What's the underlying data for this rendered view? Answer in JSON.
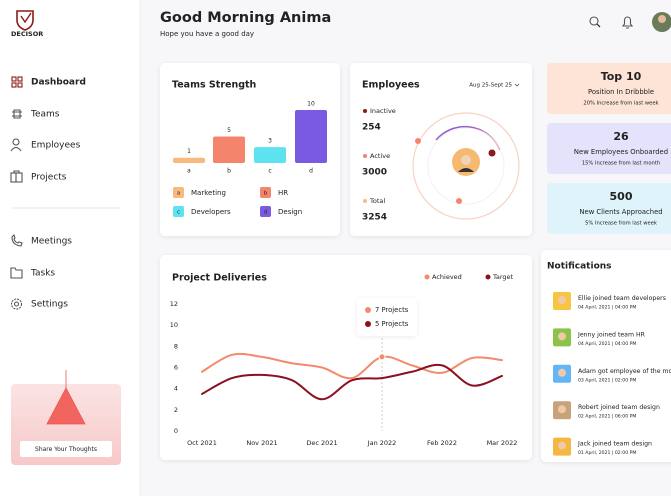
{
  "sidebar": {
    "brand": "DECISOR",
    "nav": [
      "Dashboard",
      "Teams",
      "Employees",
      "Projects",
      "Meetings",
      "Tasks",
      "Settings"
    ],
    "share": "Share Your Thoughts"
  },
  "header": {
    "title": "Good Morning Anima",
    "subtitle": "Hope you have a good day"
  },
  "teams_strength": {
    "type": "bar",
    "title": "Teams Strength",
    "categories": [
      "a",
      "b",
      "c",
      "d"
    ],
    "values": [
      1,
      5,
      3,
      10
    ],
    "colors": [
      "#f9b97c",
      "#f4846b",
      "#5de3f0",
      "#7a5ae0"
    ],
    "legend": [
      "Marketing",
      "HR",
      "Developers",
      "Design"
    ]
  },
  "employees": {
    "title": "Employees",
    "period": "Aug 25-Sept 25",
    "stats": [
      {
        "label": "Inactive",
        "value": 254,
        "color": "#8b1a1a"
      },
      {
        "label": "Active",
        "value": 3000,
        "color": "#f4846b"
      },
      {
        "label": "Total",
        "value": 3254,
        "color": "#f9b97c"
      }
    ]
  },
  "stat_cards": [
    {
      "headline": "Top 10",
      "label": "Position In Dribbble",
      "note": "20% Increase from last week",
      "color": "#fde4d6"
    },
    {
      "headline": "26",
      "label": "New Employees Onboarded",
      "note": "15% Increase from last month",
      "color": "#e5e2fb"
    },
    {
      "headline": "500",
      "label": "New Clients Approached",
      "note": "5% Increase from last week",
      "color": "#dff3fa"
    }
  ],
  "project_deliveries": {
    "type": "line",
    "title": "Project Deliveries",
    "categories": [
      "Oct 2021",
      null,
      "Nov 2021",
      null,
      "Dec 2021",
      null,
      "Jan 2022",
      null,
      "Feb 2022",
      null,
      "Mar 2022"
    ],
    "series": [
      {
        "name": "Achieved",
        "color": "#f4896b",
        "values": [
          5.6,
          7.2,
          7,
          6.4,
          6,
          5,
          7,
          6.2,
          5.5,
          6.9,
          6.7
        ]
      },
      {
        "name": "Target",
        "color": "#8b1020",
        "values": [
          3.5,
          5,
          5.3,
          4.8,
          3,
          4.8,
          5,
          5.6,
          6.2,
          4.3,
          5.2
        ]
      }
    ],
    "ylim": [
      0,
      12
    ],
    "yticks": [
      0,
      2,
      4,
      6,
      8,
      10,
      12
    ],
    "tooltip": {
      "achieved": "7 Projects",
      "target": "5 Projects"
    }
  },
  "notifications": {
    "title": "Notifications",
    "items": [
      {
        "text": "Ellie joined team developers",
        "time": "04 April, 2021 | 04:00 PM",
        "color": "#f6c542"
      },
      {
        "text": "Jenny joined team HR",
        "time": "04 April, 2021 | 04:00 PM",
        "color": "#8bc34a"
      },
      {
        "text": "Adam got employee of the month",
        "time": "03 April, 2021 | 02:00 PM",
        "color": "#64b5f6"
      },
      {
        "text": "Robert joined team design",
        "time": "02 April, 2021 | 06:00 PM",
        "color": "#c8a27a"
      },
      {
        "text": "Jack joined team design",
        "time": "01 April, 2021 | 02:00 PM",
        "color": "#f3b742"
      }
    ]
  }
}
